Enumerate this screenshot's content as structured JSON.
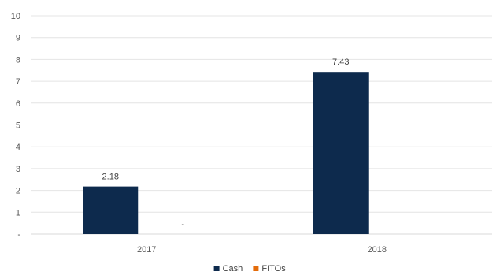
{
  "chart_data": {
    "type": "bar",
    "categories": [
      "2017",
      "2018"
    ],
    "series": [
      {
        "name": "Cash",
        "color": "#0D2A4D",
        "values": [
          2.18,
          7.43
        ],
        "labels": [
          "2.18",
          "7.43"
        ]
      },
      {
        "name": "FITOs",
        "color": "#E46C0A",
        "values": [
          0,
          0
        ],
        "labels": [
          "-",
          ""
        ]
      }
    ],
    "y_ticks": [
      "-",
      "1",
      "2",
      "3",
      "4",
      "5",
      "6",
      "7",
      "8",
      "9",
      "10"
    ],
    "ylim": [
      0,
      10
    ],
    "grid": true,
    "legend_position": "bottom-center"
  }
}
